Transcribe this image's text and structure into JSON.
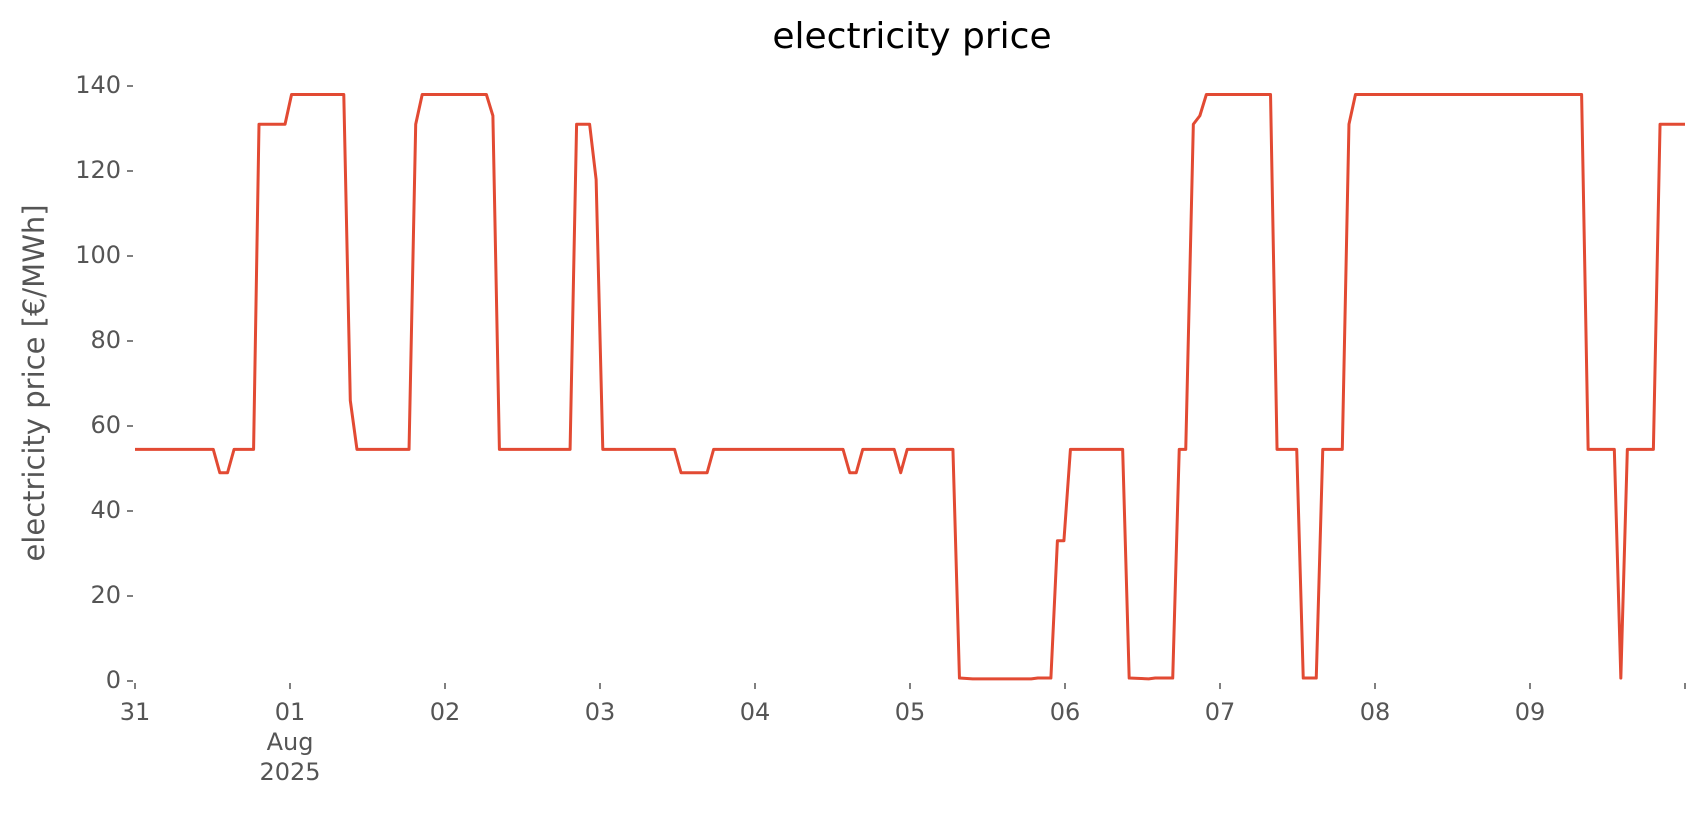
{
  "chart_data": {
    "type": "line",
    "title": "electricity price",
    "y_label": "electricity price [€/MWh]",
    "xlim": [
      0,
      10
    ],
    "xticks": [
      {
        "value": 0,
        "label": "31"
      },
      {
        "value": 1,
        "label": "01\nAug\n2025"
      },
      {
        "value": 2,
        "label": "02"
      },
      {
        "value": 3,
        "label": "03"
      },
      {
        "value": 4,
        "label": "04"
      },
      {
        "value": 5,
        "label": "05"
      },
      {
        "value": 6,
        "label": "06"
      },
      {
        "value": 7,
        "label": "07"
      },
      {
        "value": 8,
        "label": "08"
      },
      {
        "value": 9,
        "label": "09"
      },
      {
        "value": 10,
        "label": null
      }
    ],
    "ylim": [
      0,
      140
    ],
    "yticks": [
      0,
      20,
      40,
      60,
      80,
      100,
      120,
      140
    ],
    "grid": false,
    "x": [
      0,
      0.505,
      0.547,
      0.597,
      0.639,
      0.765,
      0.8,
      0.968,
      1.01,
      1.347,
      1.389,
      1.432,
      1.768,
      1.811,
      1.853,
      2.267,
      2.309,
      2.351,
      2.807,
      2.849,
      2.933,
      2.975,
      3.018,
      3.481,
      3.523,
      3.691,
      3.733,
      4.568,
      4.611,
      4.653,
      4.695,
      4.898,
      4.94,
      4.982,
      5.277,
      5.319,
      5.404,
      5.782,
      5.825,
      5.909,
      5.951,
      5.993,
      6.035,
      6.372,
      6.414,
      6.54,
      6.582,
      6.695,
      6.737,
      6.779,
      6.828,
      6.87,
      6.912,
      7.326,
      7.368,
      7.495,
      7.537,
      7.621,
      7.663,
      7.789,
      7.832,
      7.874,
      9.333,
      9.375,
      9.544,
      9.586,
      9.628,
      9.796,
      9.839,
      10
    ],
    "series": [
      {
        "color": "#e24a33",
        "values": [
          54.5,
          54.5,
          49,
          49,
          54.5,
          54.5,
          131,
          131,
          138,
          138,
          66,
          54.5,
          54.5,
          131,
          138,
          138,
          133,
          54.5,
          54.5,
          131,
          131,
          118,
          54.5,
          54.5,
          49,
          49,
          54.5,
          54.5,
          49,
          49,
          54.5,
          54.5,
          49,
          54.5,
          54.5,
          0.7,
          0.5,
          0.5,
          0.7,
          0.7,
          33,
          33,
          54.5,
          54.5,
          0.7,
          0.5,
          0.7,
          0.7,
          54.5,
          54.5,
          131,
          133,
          138,
          138,
          54.5,
          54.5,
          0.7,
          0.7,
          54.5,
          54.5,
          131,
          138,
          138,
          54.5,
          54.5,
          0.7,
          54.5,
          54.5,
          131,
          131
        ]
      }
    ]
  }
}
